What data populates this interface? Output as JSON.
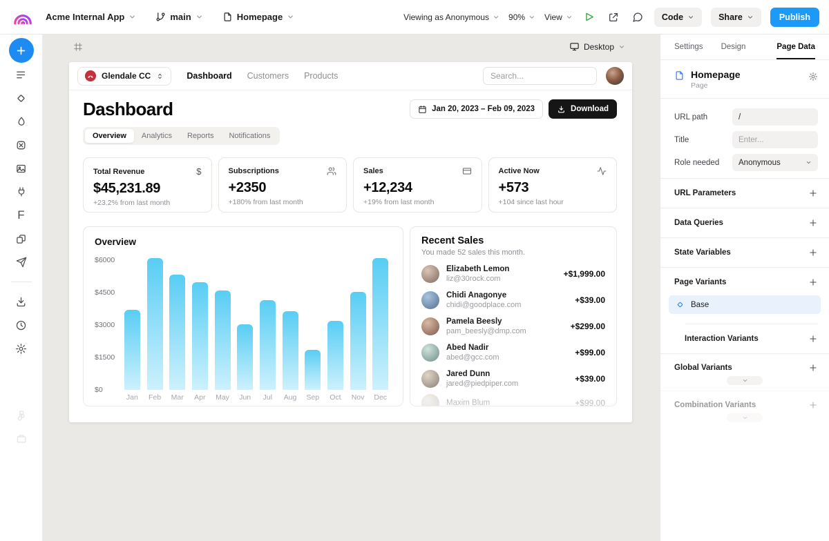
{
  "topbar": {
    "project_name": "Acme Internal App",
    "branch_name": "main",
    "page_name": "Homepage",
    "viewing_as": "Viewing as Anonymous",
    "zoom_level": "90%",
    "view_label": "View",
    "code_label": "Code",
    "share_label": "Share",
    "publish_label": "Publish",
    "publish_color": "#1b9af7"
  },
  "canvas": {
    "device_label": "Desktop"
  },
  "app": {
    "org_selector": "Glendale CC",
    "nav": {
      "dashboard": "Dashboard",
      "customers": "Customers",
      "products": "Products"
    },
    "search_placeholder": "Search...",
    "page_title": "Dashboard",
    "date_range": "Jan 20, 2023 – Feb 09, 2023",
    "download_label": "Download",
    "tabs": {
      "overview": "Overview",
      "analytics": "Analytics",
      "reports": "Reports",
      "notifications": "Notifications"
    },
    "stats": [
      {
        "label": "Total Revenue",
        "value": "$45,231.89",
        "sub": "+23.2% from last month",
        "icon": "dollar-icon"
      },
      {
        "label": "Subscriptions",
        "value": "+2350",
        "sub": "+180% from last month",
        "icon": "users-icon"
      },
      {
        "label": "Sales",
        "value": "+12,234",
        "sub": "+19% from last month",
        "icon": "credit-card-icon"
      },
      {
        "label": "Active Now",
        "value": "+573",
        "sub": "+104 since last hour",
        "icon": "activity-icon"
      }
    ],
    "recent_sales": {
      "title": "Recent Sales",
      "subtitle": "You made 52 sales this month.",
      "items": [
        {
          "name": "Elizabeth Lemon",
          "email": "liz@30rock.com",
          "amount": "+$1,999.00"
        },
        {
          "name": "Chidi Anagonye",
          "email": "chidi@goodplace.com",
          "amount": "+$39.00"
        },
        {
          "name": "Pamela Beesly",
          "email": "pam_beesly@dmp.com",
          "amount": "+$299.00"
        },
        {
          "name": "Abed Nadir",
          "email": "abed@gcc.com",
          "amount": "+$99.00"
        },
        {
          "name": "Jared Dunn",
          "email": "jared@piedpiper.com",
          "amount": "+$39.00"
        },
        {
          "name": "Maxim Blum",
          "email": "",
          "amount": "+$99.00"
        }
      ]
    }
  },
  "chart_data": {
    "type": "bar",
    "title": "Overview",
    "categories": [
      "Jan",
      "Feb",
      "Mar",
      "Apr",
      "May",
      "Jun",
      "Jul",
      "Aug",
      "Sep",
      "Oct",
      "Nov",
      "Dec"
    ],
    "values": [
      3700,
      6100,
      5350,
      5000,
      4600,
      3050,
      4150,
      3650,
      1850,
      3200,
      4550,
      6100
    ],
    "yticks": [
      6000,
      4500,
      3000,
      1500,
      0
    ],
    "ytick_labels": [
      "$6000",
      "$4500",
      "$3000",
      "$1500",
      "$0"
    ],
    "ylim": [
      0,
      6200
    ],
    "xlabel": "",
    "ylabel": "",
    "grid": false,
    "legend": false,
    "bar_color_top": "#58cdf4",
    "bar_color_bottom": "#cdf1fd"
  },
  "panel": {
    "tabs": {
      "settings": "Settings",
      "design": "Design",
      "page_data": "Page Data"
    },
    "active_tab": "Page Data",
    "page": {
      "name": "Homepage",
      "type": "Page"
    },
    "fields": {
      "url_path_label": "URL path",
      "url_path_value": "/",
      "title_label": "Title",
      "title_placeholder": "Enter...",
      "role_label": "Role needed",
      "role_value": "Anonymous"
    },
    "sections": {
      "url_parameters": "URL Parameters",
      "data_queries": "Data Queries",
      "state_variables": "State Variables",
      "page_variants": "Page Variants",
      "base_variant": "Base",
      "interaction_variants": "Interaction Variants",
      "global_variants": "Global Variants",
      "combination_variants": "Combination Variants"
    }
  }
}
